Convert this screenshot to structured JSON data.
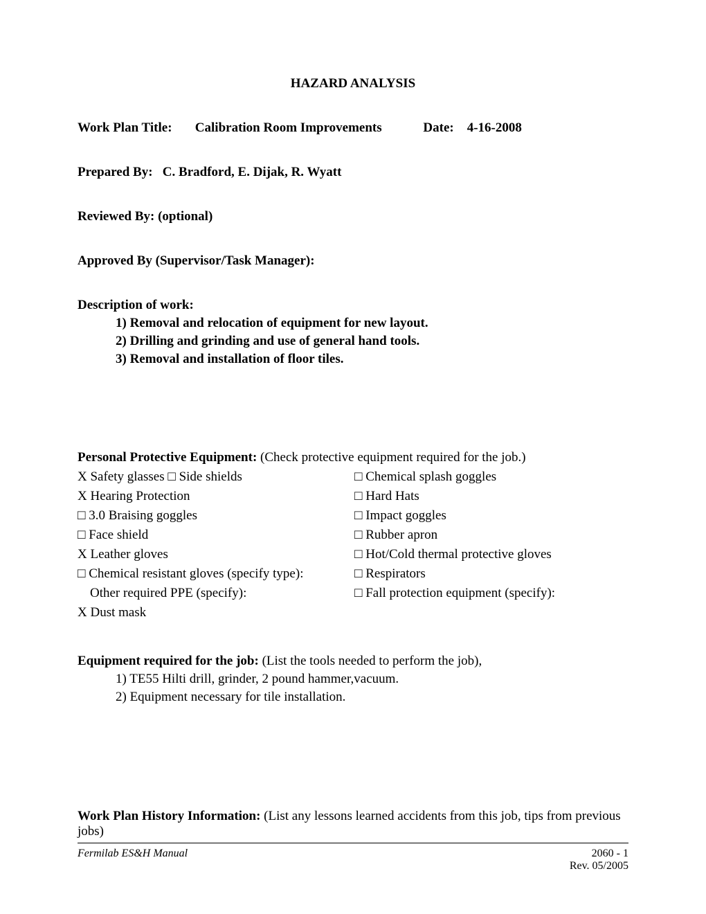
{
  "title": "HAZARD ANALYSIS",
  "workPlan": {
    "label": "Work Plan Title:",
    "value": "Calibration Room Improvements",
    "dateLabel": "Date:",
    "dateValue": "4-16-2008"
  },
  "preparedBy": {
    "label": "Prepared By:",
    "value": "C. Bradford, E. Dijak, R. Wyatt"
  },
  "reviewedBy": {
    "label": "Reviewed By:",
    "note": "(optional)"
  },
  "approvedBy": {
    "label": "Approved By (Supervisor/Task Manager):"
  },
  "description": {
    "label": "Description of work:",
    "items": [
      "1)   Removal  and relocation of equipment for new layout.",
      "2)   Drilling and grinding and use of general hand tools.",
      "3)   Removal and installation of floor tiles."
    ]
  },
  "ppe": {
    "headerBold": "Personal Protective Equipment:",
    "headerRest": "  (Check protective equipment required for the job.)",
    "left": [
      "X Safety glasses     □ Side shields",
      "X Hearing Protection",
      "□ 3.0 Braising goggles",
      "□ Face shield",
      "X Leather gloves",
      "□ Chemical resistant gloves (specify type):",
      "   Other required PPE (specify):",
      "X Dust mask"
    ],
    "right": [
      "□ Chemical splash goggles",
      "□ Hard Hats",
      "□ Impact goggles",
      "□ Rubber apron",
      "□ Hot/Cold thermal protective gloves",
      "□ Respirators",
      "□ Fall protection equipment (specify):",
      ""
    ]
  },
  "equipment": {
    "headerBold": "Equipment required for the job:",
    "headerRest": "  (List the tools needed to perform the job),",
    "items": [
      "1)   TE55 Hilti drill, grinder, 2 pound hammer,vacuum.",
      "2)   Equipment necessary for tile installation."
    ]
  },
  "history": {
    "headerBold": "Work Plan History Information:",
    "headerRest": "  (List any lessons learned accidents from this job, tips from previous jobs)"
  },
  "footer": {
    "left": "Fermilab ES&H Manual",
    "rightTop": "2060 - 1",
    "rightBottom": "Rev. 05/2005"
  }
}
